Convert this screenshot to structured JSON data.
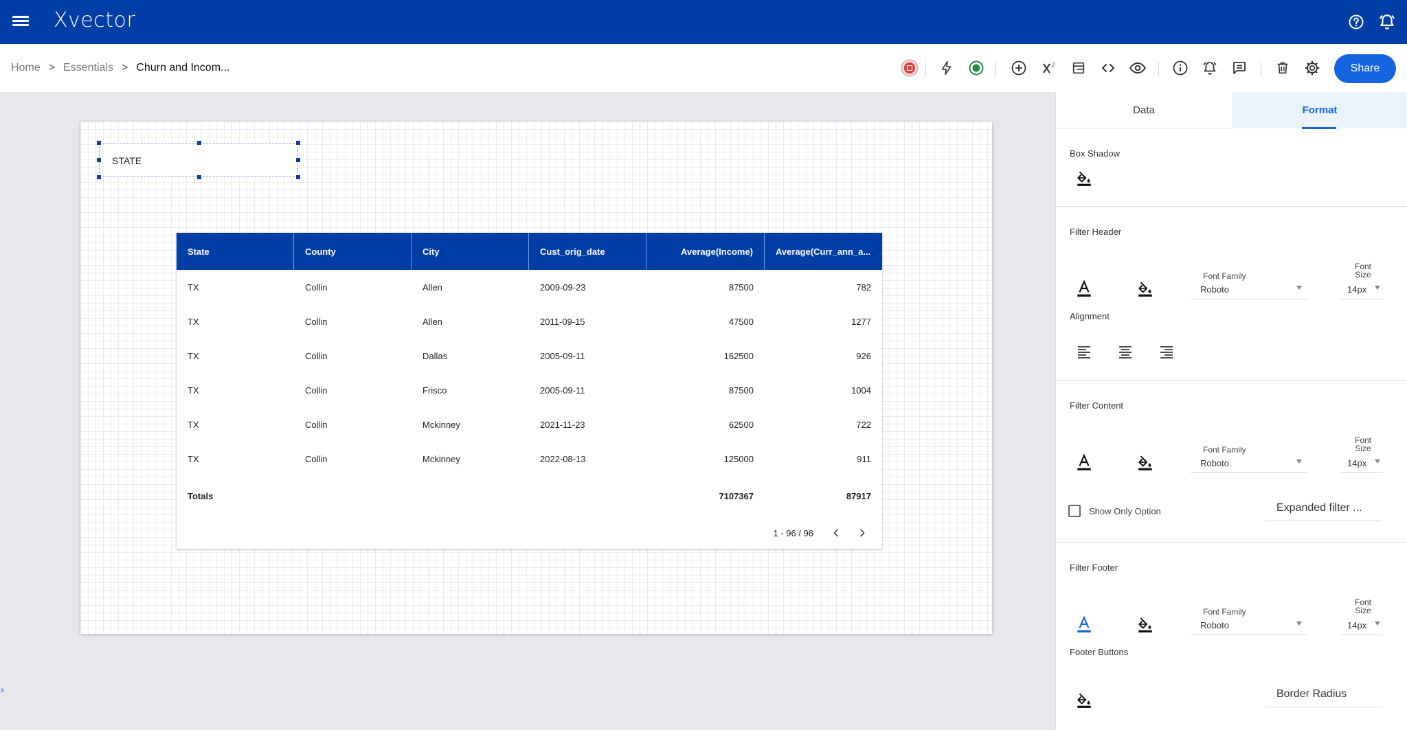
{
  "app": {
    "logo": "Xvector"
  },
  "breadcrumb": {
    "home": "Home",
    "sep1": ">",
    "essentials": "Essentials",
    "sep2": ">",
    "current": "Churn and Incom..."
  },
  "toolbar": {
    "share_label": "Share"
  },
  "state_widget": {
    "label": "STATE"
  },
  "table": {
    "headers": [
      "State",
      "County",
      "City",
      "Cust_orig_date",
      "Average(Income)",
      "Average(Curr_ann_a..."
    ],
    "rows": [
      [
        "TX",
        "Collin",
        "Allen",
        "2009-09-23",
        "87500",
        "782"
      ],
      [
        "TX",
        "Collin",
        "Allen",
        "2011-09-15",
        "47500",
        "1277"
      ],
      [
        "TX",
        "Collin",
        "Dallas",
        "2005-09-11",
        "162500",
        "926"
      ],
      [
        "TX",
        "Collin",
        "Frisco",
        "2005-09-11",
        "87500",
        "1004"
      ],
      [
        "TX",
        "Collin",
        "Mckinney",
        "2021-11-23",
        "62500",
        "722"
      ],
      [
        "TX",
        "Collin",
        "Mckinney",
        "2022-08-13",
        "125000",
        "911"
      ]
    ],
    "totals": {
      "label": "Totals",
      "income": "7107367",
      "curr": "87917"
    },
    "pagination": "1 - 96 / 96"
  },
  "tiny_mark": "x",
  "panel": {
    "tabs": {
      "data": "Data",
      "format": "Format"
    },
    "box_shadow": {
      "title": "Box Shadow"
    },
    "filter_header": {
      "title": "Filter Header",
      "font_family_label": "Font Family",
      "font_family_value": "Roboto",
      "font_size_label_1": "Font",
      "font_size_label_2": "Size",
      "font_size_value": "14px",
      "alignment_label": "Alignment"
    },
    "filter_content": {
      "title": "Filter Content",
      "font_family_label": "Font Family",
      "font_family_value": "Roboto",
      "font_size_label_1": "Font",
      "font_size_label_2": "Size",
      "font_size_value": "14px",
      "show_only_option": "Show Only Option",
      "expanded_filter": "Expanded filter ..."
    },
    "filter_footer": {
      "title": "Filter Footer",
      "font_family_label": "Font Family",
      "font_family_value": "Roboto",
      "font_size_label_1": "Font",
      "font_size_label_2": "Size",
      "font_size_value": "14px",
      "footer_buttons": "Footer Buttons",
      "border_radius": "Border Radius"
    }
  },
  "colors": {
    "primary": "#003da5",
    "accent": "#1565e0",
    "status_green": "#1e8e3e",
    "status_red": "#e53935"
  }
}
